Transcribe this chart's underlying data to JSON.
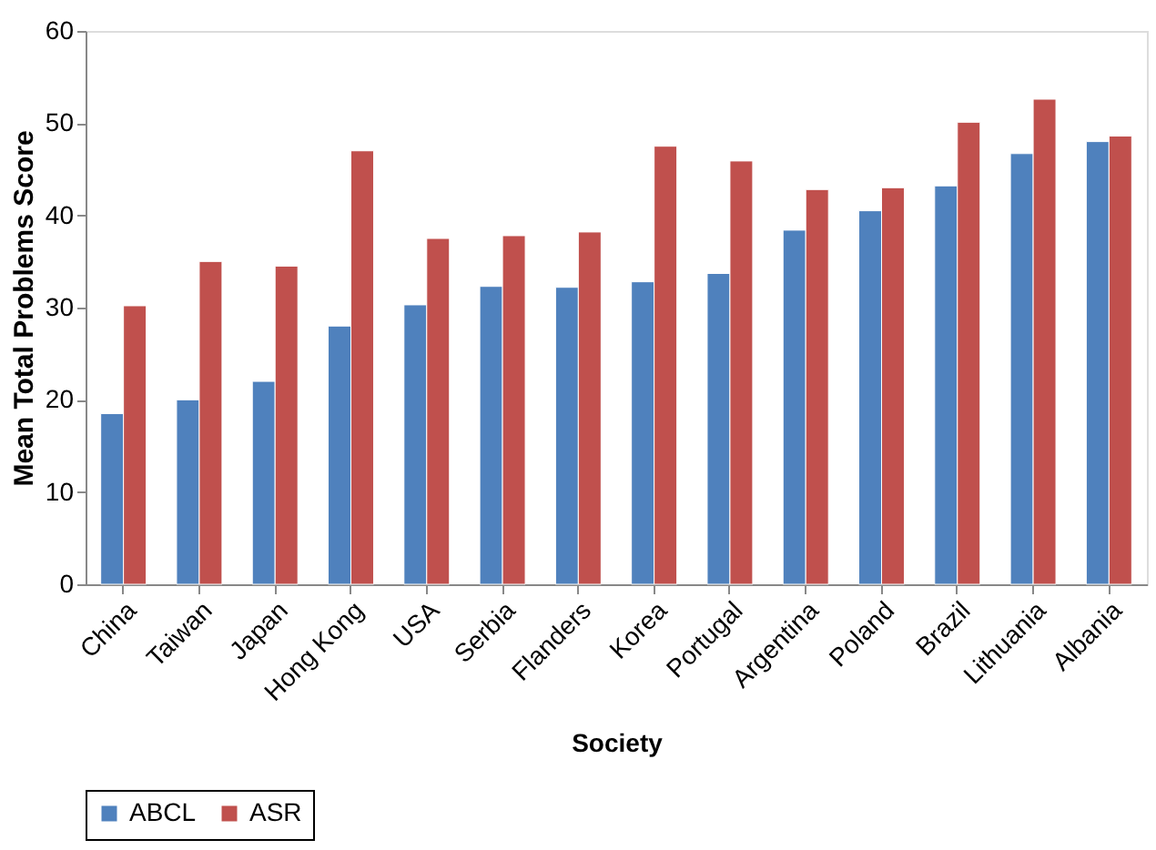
{
  "chart_data": {
    "type": "bar",
    "xlabel": "Society",
    "ylabel": "Mean Total Problems Score",
    "categories": [
      "China",
      "Taiwan",
      "Japan",
      "Hong Kong",
      "USA",
      "Serbia",
      "Flanders",
      "Korea",
      "Portugal",
      "Argentina",
      "Poland",
      "Brazil",
      "Lithuania",
      "Albania"
    ],
    "series": [
      {
        "name": "ABCL",
        "color": "#4f81bd",
        "values": [
          18.5,
          20,
          22,
          28,
          30.3,
          32.3,
          32.2,
          32.8,
          33.7,
          38.4,
          40.5,
          43.2,
          46.7,
          48
        ]
      },
      {
        "name": "ASR",
        "color": "#c0504d",
        "values": [
          30.2,
          35,
          34.5,
          47,
          37.5,
          37.8,
          38.2,
          47.5,
          45.9,
          42.8,
          43,
          50.1,
          52.6,
          48.6
        ]
      }
    ],
    "ylim": [
      0,
      60
    ],
    "yticks": [
      0,
      10,
      20,
      30,
      40,
      50,
      60
    ],
    "grid": false,
    "legend": "bottom"
  }
}
